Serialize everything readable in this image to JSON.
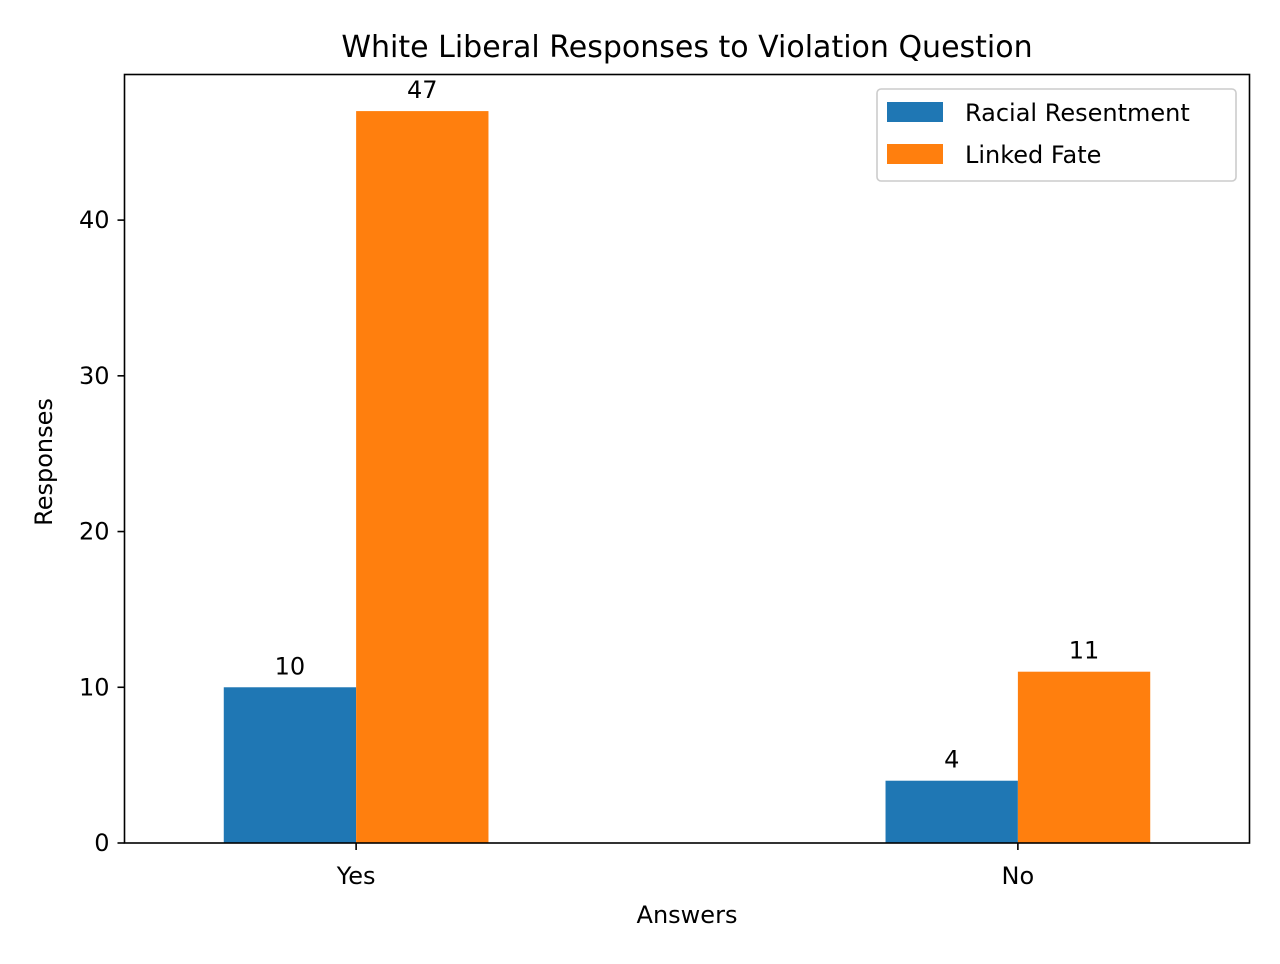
{
  "chart_data": {
    "type": "bar",
    "title": "White Liberal Responses to Violation Question",
    "xlabel": "Answers",
    "ylabel": "Responses",
    "categories": [
      "Yes",
      "No"
    ],
    "series": [
      {
        "name": "Racial Resentment",
        "values": [
          10,
          4
        ],
        "labels": [
          "10",
          "4"
        ],
        "color": "#1f77b4"
      },
      {
        "name": "Linked Fate",
        "values": [
          47,
          11
        ],
        "labels": [
          "47",
          "11"
        ],
        "color": "#ff7f0e"
      }
    ],
    "ylim": [
      0,
      49.35
    ],
    "yticks": [
      0,
      10,
      20,
      30,
      40
    ],
    "ytick_labels": [
      "0",
      "10",
      "20",
      "30",
      "40"
    ],
    "grid": false,
    "legend": "top-right"
  }
}
